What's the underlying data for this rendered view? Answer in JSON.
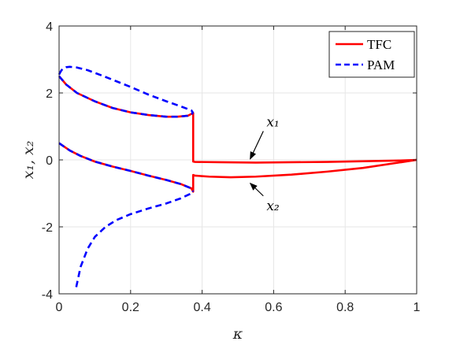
{
  "chart_data": {
    "type": "line",
    "title": "",
    "xlabel": "κ",
    "ylabel": "x₁,  x₂",
    "xlim": [
      0,
      1
    ],
    "ylim": [
      -4,
      4
    ],
    "xticks": [
      0,
      0.2,
      0.4,
      0.6,
      0.8,
      1
    ],
    "xtick_labels": [
      "0",
      "0.2",
      "0.4",
      "0.6",
      "0.8",
      "1"
    ],
    "yticks": [
      -4,
      -2,
      0,
      2,
      4
    ],
    "ytick_labels": [
      "-4",
      "-2",
      "0",
      "2",
      "4"
    ],
    "grid": true,
    "legend_position": "top-right",
    "legend": [
      {
        "label": "TFC",
        "color": "#ff0000",
        "style": "solid"
      },
      {
        "label": "PAM",
        "color": "#0000ff",
        "style": "dashed"
      }
    ],
    "annotations": [
      {
        "text": "x₁",
        "arrow_to": [
          0.53,
          -0.02
        ],
        "text_at": [
          0.58,
          1.0
        ]
      },
      {
        "text": "x₂",
        "arrow_to": [
          0.53,
          -0.65
        ],
        "text_at": [
          0.58,
          -1.5
        ]
      }
    ],
    "series": [
      {
        "name": "TFC",
        "color": "#ff0000",
        "style": "solid",
        "x": [
          0,
          0.02,
          0.05,
          0.08,
          0.1,
          0.15,
          0.2,
          0.25,
          0.3,
          0.33,
          0.36,
          0.375,
          0.375,
          0.38,
          0.45,
          0.55,
          0.65,
          0.75,
          0.85,
          0.95,
          1.0
        ],
        "y": [
          2.5,
          2.25,
          2.0,
          1.85,
          1.75,
          1.55,
          1.42,
          1.34,
          1.29,
          1.29,
          1.32,
          1.4,
          -0.05,
          -0.06,
          -0.07,
          -0.08,
          -0.07,
          -0.06,
          -0.04,
          -0.02,
          0.0
        ]
      },
      {
        "name": "TFC",
        "color": "#ff0000",
        "style": "solid",
        "x": [
          0,
          0.03,
          0.06,
          0.1,
          0.15,
          0.2,
          0.25,
          0.3,
          0.34,
          0.37,
          0.375,
          0.375,
          0.38,
          0.42,
          0.48,
          0.55,
          0.65,
          0.75,
          0.85,
          0.95,
          1.0
        ],
        "y": [
          0.5,
          0.28,
          0.12,
          -0.05,
          -0.2,
          -0.33,
          -0.47,
          -0.6,
          -0.72,
          -0.85,
          -0.95,
          -0.45,
          -0.47,
          -0.5,
          -0.52,
          -0.5,
          -0.44,
          -0.35,
          -0.24,
          -0.08,
          0.0
        ]
      },
      {
        "name": "PAM",
        "color": "#0000ff",
        "style": "dashed",
        "x": [
          0,
          0.005,
          0.01,
          0.02,
          0.03,
          0.05,
          0.08,
          0.12,
          0.16,
          0.2,
          0.25,
          0.3,
          0.34,
          0.37,
          0.375
        ],
        "y": [
          2.55,
          2.65,
          2.72,
          2.77,
          2.78,
          2.76,
          2.68,
          2.52,
          2.35,
          2.18,
          1.95,
          1.75,
          1.6,
          1.48,
          1.4
        ]
      },
      {
        "name": "PAM",
        "color": "#0000ff",
        "style": "dashed",
        "x": [
          0,
          0.02,
          0.05,
          0.08,
          0.1,
          0.15,
          0.2,
          0.25,
          0.3,
          0.33,
          0.36,
          0.375
        ],
        "y": [
          2.5,
          2.25,
          2.0,
          1.85,
          1.75,
          1.55,
          1.42,
          1.34,
          1.29,
          1.29,
          1.32,
          1.4
        ]
      },
      {
        "name": "PAM",
        "color": "#0000ff",
        "style": "dashed",
        "x": [
          0,
          0.03,
          0.06,
          0.1,
          0.15,
          0.2,
          0.25,
          0.3,
          0.34,
          0.37,
          0.375
        ],
        "y": [
          0.5,
          0.28,
          0.12,
          -0.05,
          -0.2,
          -0.33,
          -0.47,
          -0.6,
          -0.72,
          -0.85,
          -0.95
        ]
      },
      {
        "name": "PAM",
        "color": "#0000ff",
        "style": "dashed",
        "x": [
          0.048,
          0.06,
          0.08,
          0.1,
          0.13,
          0.16,
          0.2,
          0.25,
          0.3,
          0.34,
          0.37,
          0.375
        ],
        "y": [
          -3.8,
          -3.2,
          -2.65,
          -2.3,
          -2.0,
          -1.8,
          -1.62,
          -1.45,
          -1.3,
          -1.15,
          -1.0,
          -0.95
        ]
      }
    ]
  }
}
